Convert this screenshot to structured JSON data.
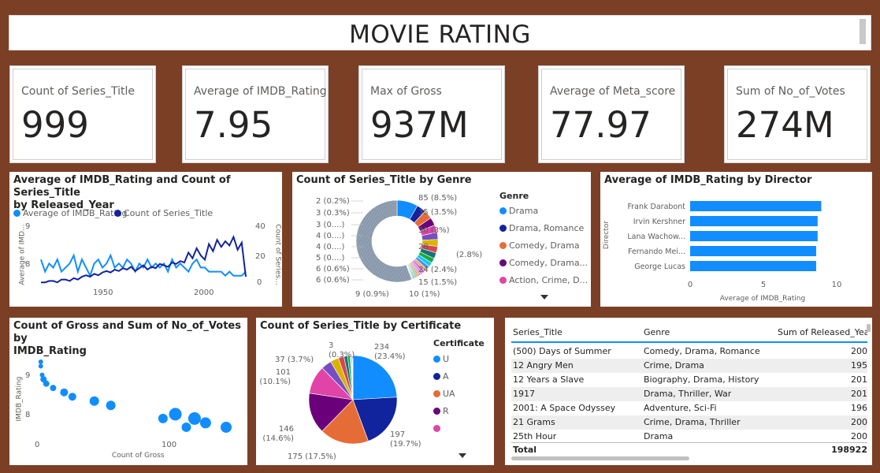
{
  "title": "MOVIE RATING",
  "cards": [
    {
      "label": "Count of Series_Title",
      "value": "999"
    },
    {
      "label": "Average of IMDB_Rating",
      "value": "7.95"
    },
    {
      "label": "Max of Gross",
      "value": "937M"
    },
    {
      "label": "Average of Meta_score",
      "value": "77.97"
    },
    {
      "label": "Sum of No_of_Votes",
      "value": "274M"
    }
  ],
  "colors": {
    "primary": "#118dff",
    "dark": "#12239e",
    "orange": "#e66c37",
    "purple": "#6b007b",
    "pink": "#e044a7",
    "background": "#7b3f26"
  },
  "chart_data": [
    {
      "type": "line",
      "title": "Average of IMDB_Rating and Count of Series_Title by Released_Year",
      "title_lines": [
        "Average of IMDB_Rating and Count of Series_Title",
        "by Released_Year"
      ],
      "legend": [
        "Average of IMDB_Rating",
        "Count of Series_Title"
      ],
      "ylabel_left": "Average of IMD...",
      "ylabel_right": "Count of Series...",
      "x_ticks": [
        "1950",
        "2000"
      ],
      "y_left_ticks": [
        "9",
        "8"
      ],
      "y_right_ticks": [
        "40",
        "20",
        "0"
      ],
      "xlim": [
        1920,
        2020
      ],
      "ylim_left": [
        7.6,
        9.0
      ],
      "ylim_right": [
        0,
        40
      ],
      "series": [
        {
          "name": "Average of IMDB_Rating",
          "x": [
            1920,
            1922,
            1924,
            1926,
            1928,
            1930,
            1932,
            1934,
            1936,
            1938,
            1940,
            1942,
            1944,
            1946,
            1948,
            1950,
            1952,
            1954,
            1956,
            1958,
            1960,
            1962,
            1964,
            1966,
            1968,
            1970,
            1972,
            1974,
            1976,
            1978,
            1980,
            1982,
            1984,
            1986,
            1988,
            1990,
            1992,
            1994,
            1996,
            1998,
            2000,
            2002,
            2004,
            2006,
            2008,
            2010,
            2012,
            2014,
            2016,
            2018,
            2020
          ],
          "values": [
            8.2,
            7.9,
            8.1,
            8.0,
            8.2,
            7.9,
            8.0,
            8.1,
            8.3,
            7.9,
            8.2,
            8.0,
            7.8,
            8.1,
            8.2,
            8.0,
            8.1,
            8.3,
            8.0,
            8.1,
            8.0,
            8.2,
            8.1,
            7.9,
            8.1,
            8.0,
            8.2,
            8.0,
            8.1,
            8.0,
            8.1,
            7.9,
            8.2,
            8.0,
            8.1,
            8.0,
            7.9,
            8.1,
            8.2,
            8.0,
            8.0,
            7.9,
            7.9,
            7.9,
            7.9,
            7.8,
            7.9,
            7.8,
            7.8,
            7.8,
            7.9
          ]
        },
        {
          "name": "Count of Series_Title",
          "x": [
            1920,
            1922,
            1924,
            1926,
            1928,
            1930,
            1932,
            1934,
            1936,
            1938,
            1940,
            1942,
            1944,
            1946,
            1948,
            1950,
            1952,
            1954,
            1956,
            1958,
            1960,
            1962,
            1964,
            1966,
            1968,
            1970,
            1972,
            1974,
            1976,
            1978,
            1980,
            1982,
            1984,
            1986,
            1988,
            1990,
            1992,
            1994,
            1996,
            1998,
            2000,
            2002,
            2004,
            2006,
            2008,
            2010,
            2012,
            2014,
            2016,
            2018,
            2020
          ],
          "values": [
            1,
            1,
            2,
            2,
            1,
            3,
            3,
            2,
            4,
            3,
            5,
            6,
            5,
            7,
            6,
            8,
            9,
            8,
            10,
            9,
            11,
            10,
            12,
            9,
            11,
            13,
            10,
            12,
            11,
            14,
            13,
            12,
            15,
            14,
            16,
            15,
            22,
            18,
            25,
            20,
            17,
            28,
            23,
            31,
            26,
            30,
            27,
            33,
            24,
            29,
            5
          ]
        }
      ]
    },
    {
      "type": "pie",
      "donut": true,
      "title": "Count of Series_Title by Genre",
      "legend_title": "Genre",
      "legend": [
        "Drama",
        "Drama, Romance",
        "Comedy, Drama",
        "Comedy, Drama...",
        "Action, Crime, D..."
      ],
      "slices": [
        {
          "label": "85 (8.5%)",
          "value": 85,
          "color": "#118dff"
        },
        {
          "label": "",
          "value": 37,
          "color": "#12239e"
        },
        {
          "label": "35 (3.5%)",
          "value": 35,
          "color": "#e66c37"
        },
        {
          "label": "",
          "value": 32,
          "color": "#6b007b"
        },
        {
          "label": "30 (3%)",
          "value": 30,
          "color": "#e044a7"
        },
        {
          "label": "",
          "value": 29,
          "color": "#744ec2"
        },
        {
          "label": "28 (2.8%)",
          "value": 28,
          "color": "#d9b300"
        },
        {
          "label": "",
          "value": 26,
          "color": "#d64550"
        },
        {
          "label": "24 (2.4%)",
          "value": 24,
          "color": "#197278"
        },
        {
          "label": "",
          "value": 20,
          "color": "#1aab40"
        },
        {
          "label": "",
          "value": 17,
          "color": "#15c6f4"
        },
        {
          "label": "15 (1.5%)",
          "value": 15,
          "color": "#4092ff"
        },
        {
          "label": "",
          "value": 12,
          "color": "#ffa058"
        },
        {
          "label": "10 (1%)",
          "value": 10,
          "color": "#be5dc9"
        },
        {
          "label": "9 (0.9%)",
          "value": 9,
          "color": "#f472d0"
        },
        {
          "label": "",
          "value": 8,
          "color": "#b5a1ff"
        },
        {
          "label": "6 (0.6%)",
          "value": 6,
          "color": "#c4a200"
        },
        {
          "label": "6 (0.6%)",
          "value": 6,
          "color": "#ff8080"
        },
        {
          "label": "5 (0....)",
          "value": 5,
          "color": "#00dbbc"
        },
        {
          "label": "4 (0....)",
          "value": 4,
          "color": "#5bd667"
        },
        {
          "label": "4 (0....)",
          "value": 4,
          "color": "#0091d5"
        },
        {
          "label": "3 (0....)",
          "value": 3,
          "color": "#4668c5"
        },
        {
          "label": "3 (0.3%)",
          "value": 3,
          "color": "#ff6300"
        },
        {
          "label": "2 (0.2%)",
          "value": 2,
          "color": "#99008a"
        },
        {
          "label": "",
          "value": 570,
          "color": "#a0a0a0"
        }
      ]
    },
    {
      "type": "bar",
      "orientation": "horizontal",
      "title": "Average of IMDB_Rating by Director",
      "xlabel": "Average of IMDB_Rating",
      "ylabel": "Director",
      "categories": [
        "Frank Darabont",
        "Irvin Kershner",
        "Lana Wachow...",
        "Fernando Mei...",
        "George Lucas"
      ],
      "values": [
        8.95,
        8.7,
        8.7,
        8.6,
        8.6
      ],
      "xlim": [
        0,
        10
      ],
      "x_ticks": [
        "0",
        "5",
        "10"
      ]
    },
    {
      "type": "scatter",
      "title": "Count of Gross and Sum of No_of_Votes by IMDB_Rating",
      "title_lines": [
        "Count of Gross and Sum of No_of_Votes by",
        "IMDB_Rating"
      ],
      "xlabel": "Count of Gross",
      "ylabel": "IMDB_Rating",
      "xlim": [
        0,
        140
      ],
      "ylim": [
        7.6,
        9.3
      ],
      "x_ticks": [
        "0",
        "100"
      ],
      "y_ticks": [
        "9",
        "8"
      ],
      "points": [
        {
          "x": 1,
          "y": 9.3,
          "size": 3
        },
        {
          "x": 1,
          "y": 9.2,
          "size": 3
        },
        {
          "x": 2,
          "y": 9.0,
          "size": 3
        },
        {
          "x": 3,
          "y": 8.9,
          "size": 4
        },
        {
          "x": 5,
          "y": 8.8,
          "size": 4
        },
        {
          "x": 10,
          "y": 8.7,
          "size": 4
        },
        {
          "x": 18,
          "y": 8.6,
          "size": 5
        },
        {
          "x": 24,
          "y": 8.5,
          "size": 5
        },
        {
          "x": 40,
          "y": 8.4,
          "size": 6
        },
        {
          "x": 52,
          "y": 8.3,
          "size": 6
        },
        {
          "x": 90,
          "y": 8.0,
          "size": 6
        },
        {
          "x": 99,
          "y": 8.1,
          "size": 8
        },
        {
          "x": 107,
          "y": 7.8,
          "size": 6
        },
        {
          "x": 113,
          "y": 8.0,
          "size": 8
        },
        {
          "x": 121,
          "y": 7.9,
          "size": 7
        },
        {
          "x": 136,
          "y": 7.8,
          "size": 7
        }
      ]
    },
    {
      "type": "pie",
      "title": "Count of Series_Title by Certificate",
      "legend_title": "Certificate",
      "legend": [
        "U",
        "A",
        "UA",
        "R",
        ""
      ],
      "slices": [
        {
          "label": "234 (23.4%)",
          "value": 234,
          "color": "#118dff"
        },
        {
          "label": "197 (19.7%)",
          "value": 197,
          "color": "#12239e"
        },
        {
          "label": "175 (17.5%)",
          "value": 175,
          "color": "#e66c37"
        },
        {
          "label": "146 (14.6%)",
          "value": 146,
          "color": "#6b007b"
        },
        {
          "label": "101 (10.1%)",
          "value": 101,
          "color": "#e044a7"
        },
        {
          "label": "37 (3.7%)",
          "value": 37,
          "color": "#744ec2"
        },
        {
          "label": "",
          "value": 30,
          "color": "#d9b300"
        },
        {
          "label": "",
          "value": 20,
          "color": "#d64550"
        },
        {
          "label": "",
          "value": 13,
          "color": "#197278"
        },
        {
          "label": "",
          "value": 9,
          "color": "#1aab40"
        },
        {
          "label": "3 (0.3%)",
          "value": 3,
          "color": "#15c6f4"
        },
        {
          "label": "",
          "value": 3,
          "color": "#4092ff"
        },
        {
          "label": "",
          "value": 2,
          "color": "#ffa058"
        },
        {
          "label": "",
          "value": 2,
          "color": "#be5dc9"
        }
      ]
    },
    {
      "type": "table",
      "columns": [
        "Series_Title",
        "Genre",
        "Sum of Released_Yea"
      ],
      "rows": [
        [
          "(500) Days of Summer",
          "Comedy, Drama, Romance",
          "200"
        ],
        [
          "12 Angry Men",
          "Crime, Drama",
          "195"
        ],
        [
          "12 Years a Slave",
          "Biography, Drama, History",
          "201"
        ],
        [
          "1917",
          "Drama, Thriller, War",
          "201"
        ],
        [
          "2001: A Space Odyssey",
          "Adventure, Sci-Fi",
          "196"
        ],
        [
          "21 Grams",
          "Crime, Drama, Thriller",
          "200"
        ],
        [
          "25th Hour",
          "Drama",
          "200"
        ]
      ],
      "total_label": "Total",
      "total_value": "198922"
    }
  ]
}
